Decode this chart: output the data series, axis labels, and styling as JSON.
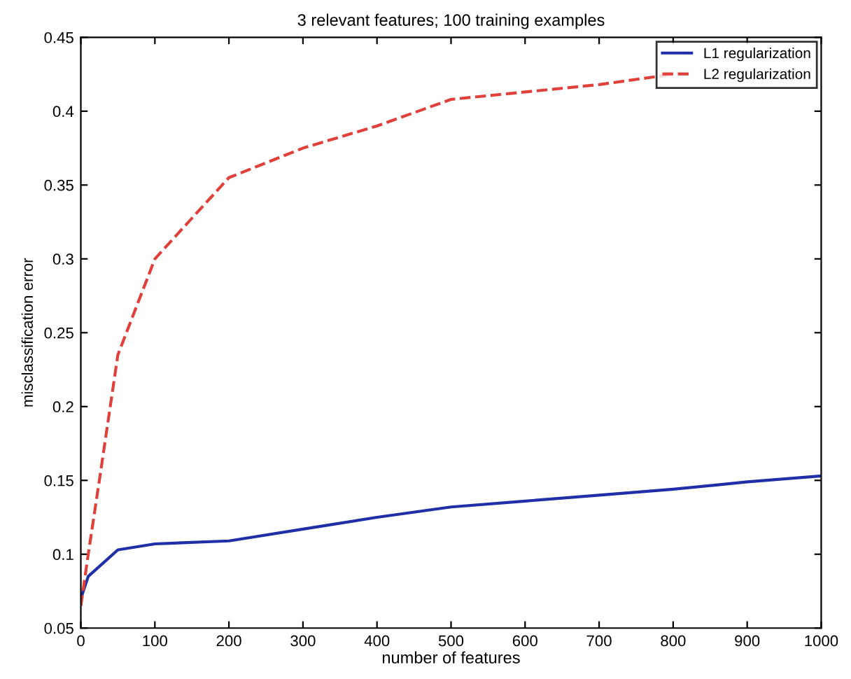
{
  "chart_data": {
    "type": "line",
    "title": "3 relevant features; 100 training examples",
    "xlabel": "number of features",
    "ylabel": "misclassification error",
    "series": [
      {
        "name": "L1 regularization",
        "color": "#1f2fa8",
        "line_style": "solid",
        "x": [
          0,
          10,
          50,
          100,
          200,
          300,
          400,
          500,
          600,
          700,
          800,
          900,
          1000
        ],
        "values": [
          0.07,
          0.085,
          0.103,
          0.107,
          0.109,
          0.117,
          0.125,
          0.132,
          0.136,
          0.14,
          0.144,
          0.149,
          0.153
        ]
      },
      {
        "name": "L2 regularization",
        "color": "#e0403a",
        "line_style": "dashed",
        "x": [
          0,
          10,
          25,
          50,
          100,
          200,
          300,
          400,
          500,
          600,
          700,
          800
        ],
        "values": [
          0.065,
          0.1,
          0.15,
          0.235,
          0.3,
          0.355,
          0.375,
          0.39,
          0.408,
          0.413,
          0.418,
          0.425
        ]
      }
    ],
    "xlim": [
      0,
      1000
    ],
    "xticks": [
      0,
      100,
      200,
      300,
      400,
      500,
      600,
      700,
      800,
      900,
      1000
    ],
    "ylim": [
      0.05,
      0.45
    ],
    "yticks": [
      0.05,
      0.1,
      0.15,
      0.2,
      0.25,
      0.3,
      0.35,
      0.4,
      0.45
    ],
    "grid": false,
    "legend": "top right"
  }
}
